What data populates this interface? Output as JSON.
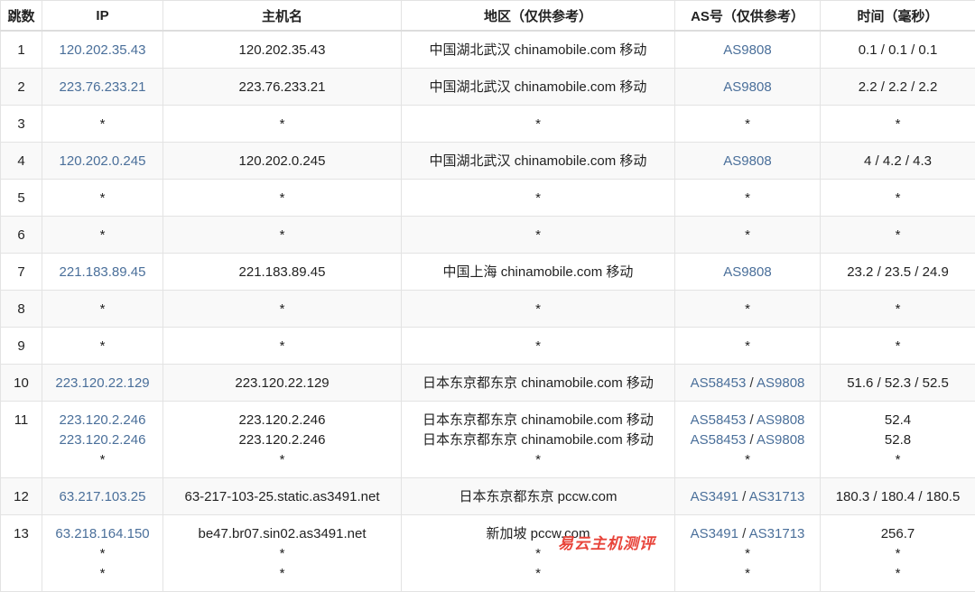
{
  "headers": [
    "跳数",
    "IP",
    "主机名",
    "地区（仅供参考）",
    "AS号（仅供参考）",
    "时间（毫秒）"
  ],
  "colors": {
    "link": "#4a6f9a",
    "watermark": "#e8443a",
    "row_alt": "#f9f9f9"
  },
  "rows": [
    {
      "hop": "1",
      "ip": [
        "120.202.35.43"
      ],
      "host": [
        "120.202.35.43"
      ],
      "region": [
        "中国湖北武汉 chinamobile.com 移动"
      ],
      "as": [
        [
          "AS9808"
        ]
      ],
      "time": [
        "0.1 / 0.1 / 0.1"
      ]
    },
    {
      "hop": "2",
      "ip": [
        "223.76.233.21"
      ],
      "host": [
        "223.76.233.21"
      ],
      "region": [
        "中国湖北武汉 chinamobile.com 移动"
      ],
      "as": [
        [
          "AS9808"
        ]
      ],
      "time": [
        "2.2 / 2.2 / 2.2"
      ]
    },
    {
      "hop": "3",
      "ip": [
        "*"
      ],
      "host": [
        "*"
      ],
      "region": [
        "*"
      ],
      "as": [
        [
          "*"
        ]
      ],
      "time": [
        "*"
      ]
    },
    {
      "hop": "4",
      "ip": [
        "120.202.0.245"
      ],
      "host": [
        "120.202.0.245"
      ],
      "region": [
        "中国湖北武汉 chinamobile.com 移动"
      ],
      "as": [
        [
          "AS9808"
        ]
      ],
      "time": [
        "4 / 4.2 / 4.3"
      ]
    },
    {
      "hop": "5",
      "ip": [
        "*"
      ],
      "host": [
        "*"
      ],
      "region": [
        "*"
      ],
      "as": [
        [
          "*"
        ]
      ],
      "time": [
        "*"
      ]
    },
    {
      "hop": "6",
      "ip": [
        "*"
      ],
      "host": [
        "*"
      ],
      "region": [
        "*"
      ],
      "as": [
        [
          "*"
        ]
      ],
      "time": [
        "*"
      ]
    },
    {
      "hop": "7",
      "ip": [
        "221.183.89.45"
      ],
      "host": [
        "221.183.89.45"
      ],
      "region": [
        "中国上海 chinamobile.com 移动"
      ],
      "as": [
        [
          "AS9808"
        ]
      ],
      "time": [
        "23.2 / 23.5 / 24.9"
      ]
    },
    {
      "hop": "8",
      "ip": [
        "*"
      ],
      "host": [
        "*"
      ],
      "region": [
        "*"
      ],
      "as": [
        [
          "*"
        ]
      ],
      "time": [
        "*"
      ]
    },
    {
      "hop": "9",
      "ip": [
        "*"
      ],
      "host": [
        "*"
      ],
      "region": [
        "*"
      ],
      "as": [
        [
          "*"
        ]
      ],
      "time": [
        "*"
      ]
    },
    {
      "hop": "10",
      "ip": [
        "223.120.22.129"
      ],
      "host": [
        "223.120.22.129"
      ],
      "region": [
        "日本东京都东京 chinamobile.com 移动"
      ],
      "as": [
        [
          "AS58453",
          "AS9808"
        ]
      ],
      "time": [
        "51.6 / 52.3 / 52.5"
      ]
    },
    {
      "hop": "11",
      "ip": [
        "223.120.2.246",
        "223.120.2.246",
        "*"
      ],
      "host": [
        "223.120.2.246",
        "223.120.2.246",
        "*"
      ],
      "region": [
        "日本东京都东京 chinamobile.com 移动",
        "日本东京都东京 chinamobile.com 移动",
        "*"
      ],
      "as": [
        [
          "AS58453",
          "AS9808"
        ],
        [
          "AS58453",
          "AS9808"
        ],
        [
          "*"
        ]
      ],
      "time": [
        "52.4",
        "52.8",
        "*"
      ]
    },
    {
      "hop": "12",
      "ip": [
        "63.217.103.25"
      ],
      "host": [
        "63-217-103-25.static.as3491.net"
      ],
      "region": [
        "日本东京都东京 pccw.com"
      ],
      "as": [
        [
          "AS3491",
          "AS31713"
        ]
      ],
      "time": [
        "180.3 / 180.4 / 180.5"
      ]
    },
    {
      "hop": "13",
      "ip": [
        "63.218.164.150",
        "*",
        "*"
      ],
      "host": [
        "be47.br07.sin02.as3491.net",
        "*",
        "*"
      ],
      "region": [
        "新加坡 pccw.com",
        "*",
        "*"
      ],
      "as": [
        [
          "AS3491",
          "AS31713"
        ],
        [
          "*"
        ],
        [
          "*"
        ]
      ],
      "time": [
        "256.7",
        "*",
        "*"
      ]
    }
  ],
  "watermark": "易云主机测评"
}
